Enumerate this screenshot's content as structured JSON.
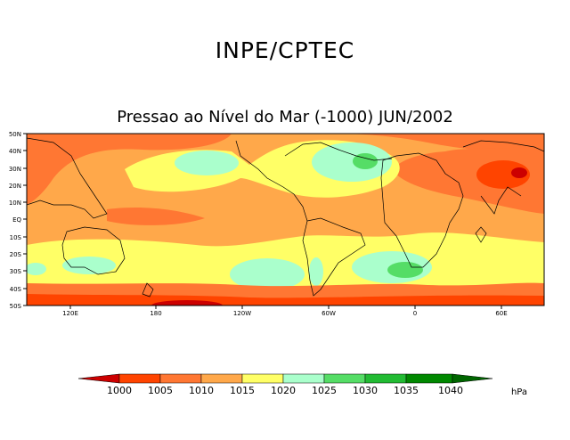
{
  "header": {
    "title": "INPE/CPTEC"
  },
  "map": {
    "subtitle": "Pressao ao Nível do Mar (-1000) JUN/2002",
    "lat_labels": [
      "50N",
      "40N",
      "30N",
      "20N",
      "10N",
      "EQ",
      "10S",
      "20S",
      "30S",
      "40S",
      "50S"
    ],
    "lon_labels": [
      "120E",
      "180",
      "120W",
      "60W",
      "0",
      "60E"
    ]
  },
  "colorbar": {
    "levels": [
      "1000",
      "1005",
      "1010",
      "1015",
      "1020",
      "1025",
      "1030",
      "1035",
      "1040"
    ],
    "unit": "hPa",
    "colors": [
      "#ff4400",
      "#ff7733",
      "#ffa84a",
      "#ffff66",
      "#aaffcc",
      "#55dd66",
      "#22bb33",
      "#008800"
    ],
    "under_color": "#cc0000",
    "over_color": "#006600"
  }
}
